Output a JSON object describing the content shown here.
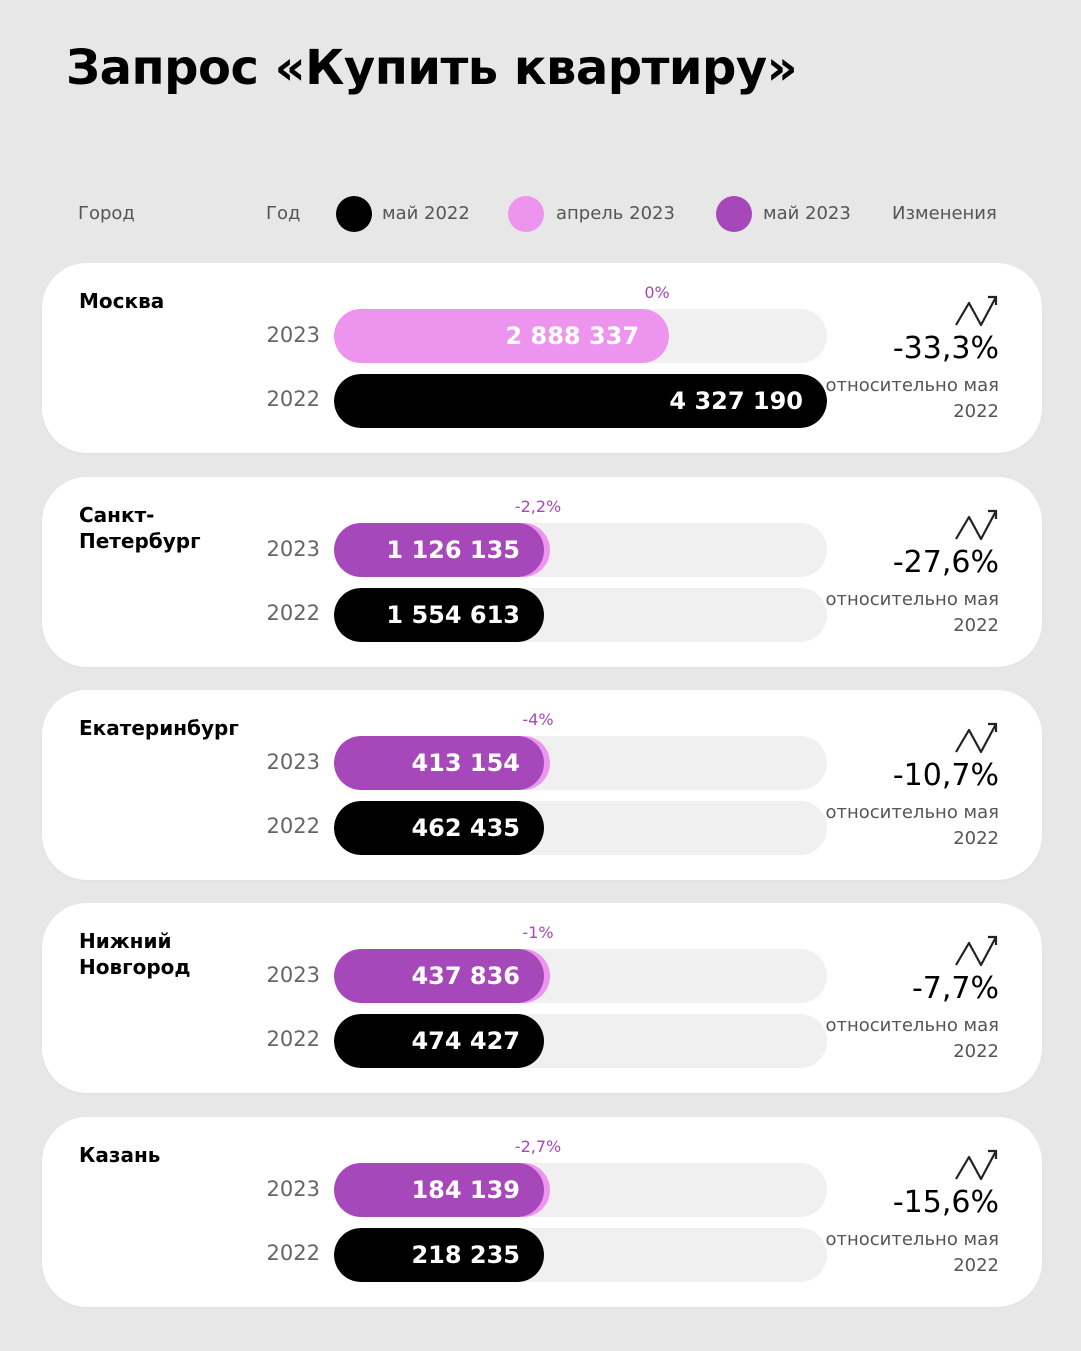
{
  "title": "Запрос «Купить квартиру»",
  "header": {
    "city": "Город",
    "year": "Год",
    "legend": [
      {
        "label": "май 2022",
        "color": "#000000"
      },
      {
        "label": "апрель 2023",
        "color": "#ec94ee"
      },
      {
        "label": "май 2023",
        "color": "#a648b9"
      }
    ],
    "changes": "Изменения"
  },
  "colors": {
    "may2022": "#000000",
    "april2023": "#ec94ee",
    "may2023": "#a648b9",
    "track": "#f0f0f0"
  },
  "chart_data": {
    "type": "bar",
    "max_value": 4327190,
    "year_labels": [
      "2023",
      "2022"
    ],
    "relative_text": "относительно мая 2022",
    "icon": "trend-up-icon",
    "cities": [
      {
        "name": "Москва",
        "may2022": 4327190,
        "may2022_label": "4 327 190",
        "may2023": 2888337,
        "may2023_label": "2 888 337",
        "apr2023_change": "0%",
        "change": "-33,3%"
      },
      {
        "name": "Санкт-\nПетербург",
        "may2022": 1554613,
        "may2022_label": "1 554 613",
        "may2023": 1126135,
        "may2023_label": "1 126 135",
        "apr2023_change": "-2,2%",
        "change": "-27,6%"
      },
      {
        "name": "Екатеринбург",
        "may2022": 462435,
        "may2022_label": "462 435",
        "may2023": 413154,
        "may2023_label": "413 154",
        "apr2023_change": "-4%",
        "change": "-10,7%"
      },
      {
        "name": "Нижний\nНовгород",
        "may2022": 474427,
        "may2022_label": "474 427",
        "may2023": 437836,
        "may2023_label": "437 836",
        "apr2023_change": "-1%",
        "change": "-7,7%"
      },
      {
        "name": "Казань",
        "may2022": 218235,
        "may2022_label": "218 235",
        "may2023": 184139,
        "may2023_label": "184 139",
        "apr2023_change": "-2,7%",
        "change": "-15,6%"
      }
    ]
  }
}
